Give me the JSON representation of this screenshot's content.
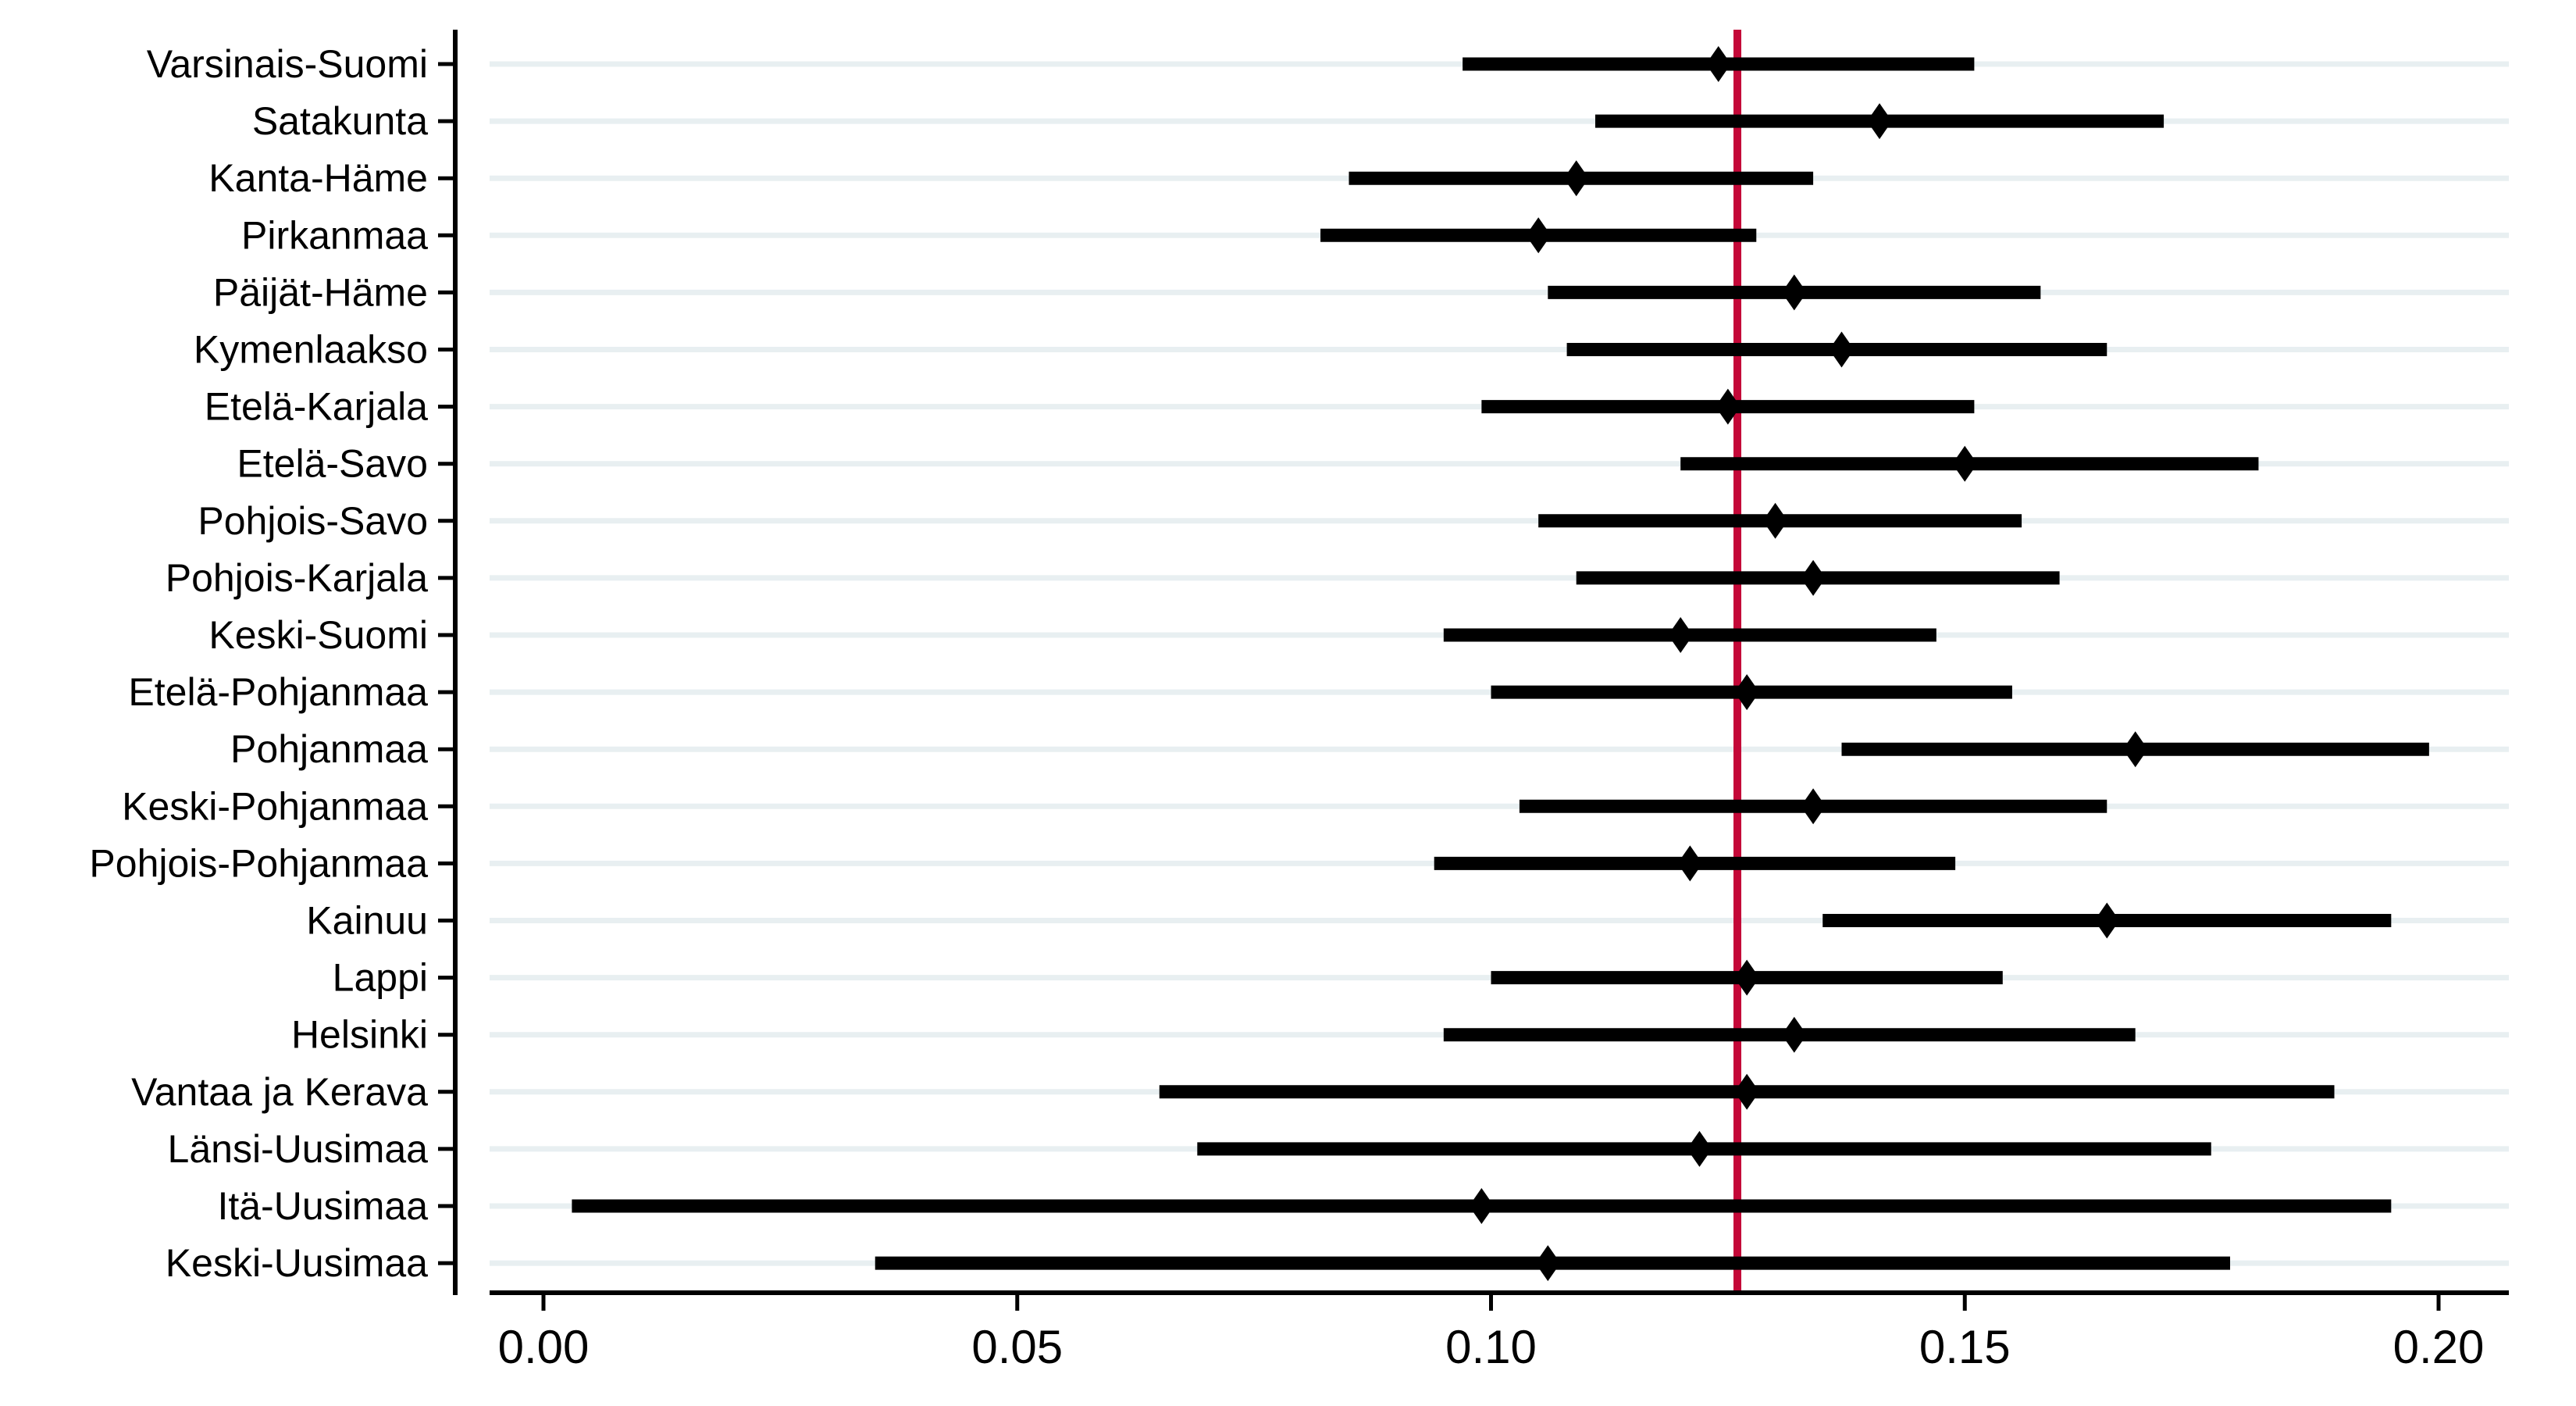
{
  "chart_data": {
    "type": "scatter",
    "subtype": "forest-plot",
    "title": "",
    "xlabel": "",
    "ylabel": "",
    "categories": [
      "Varsinais-Suomi",
      "Satakunta",
      "Kanta-Häme",
      "Pirkanmaa",
      "Päijät-Häme",
      "Kymenlaakso",
      "Etelä-Karjala",
      "Etelä-Savo",
      "Pohjois-Savo",
      "Pohjois-Karjala",
      "Keski-Suomi",
      "Etelä-Pohjanmaa",
      "Pohjanmaa",
      "Keski-Pohjanmaa",
      "Pohjois-Pohjanmaa",
      "Kainuu",
      "Lappi",
      "Helsinki",
      "Vantaa ja Kerava",
      "Länsi-Uusimaa",
      "Itä-Uusimaa",
      "Keski-Uusimaa"
    ],
    "series": [
      {
        "name": "point-estimate",
        "marker": "diamond",
        "values": [
          0.124,
          0.141,
          0.109,
          0.105,
          0.132,
          0.137,
          0.125,
          0.15,
          0.13,
          0.134,
          0.12,
          0.127,
          0.168,
          0.134,
          0.121,
          0.165,
          0.127,
          0.132,
          0.127,
          0.122,
          0.099,
          0.106
        ],
        "ci_low": [
          0.097,
          0.111,
          0.085,
          0.082,
          0.106,
          0.108,
          0.099,
          0.12,
          0.105,
          0.109,
          0.095,
          0.1,
          0.137,
          0.103,
          0.094,
          0.135,
          0.1,
          0.095,
          0.065,
          0.069,
          0.003,
          0.035
        ],
        "ci_high": [
          0.151,
          0.171,
          0.134,
          0.128,
          0.158,
          0.165,
          0.151,
          0.181,
          0.156,
          0.16,
          0.147,
          0.155,
          0.199,
          0.165,
          0.149,
          0.195,
          0.154,
          0.168,
          0.189,
          0.176,
          0.195,
          0.178
        ]
      }
    ],
    "reference_line_x": 0.126,
    "xticks": [
      0,
      0.05,
      0.1,
      0.15,
      0.2
    ],
    "xtick_labels": [
      "0.00",
      "0.05",
      "0.10",
      "0.15",
      "0.20"
    ],
    "xlim": [
      -0.0095,
      0.2075
    ],
    "grid": "horizontal",
    "legend": "none",
    "colors": {
      "marker": "#000000",
      "ci_bar": "#000000",
      "reference_line": "#C40838",
      "gridline": "#E8EFF1",
      "axis": "#000000",
      "background": "#FFFFFF"
    }
  }
}
